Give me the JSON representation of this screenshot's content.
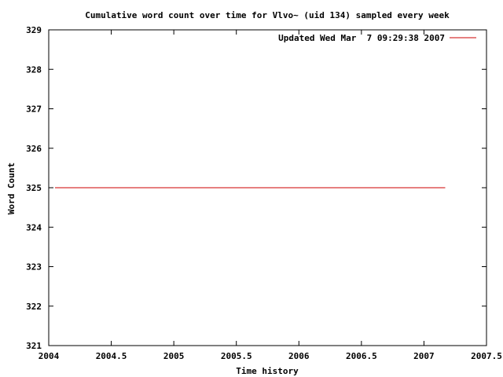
{
  "chart_data": {
    "type": "line",
    "title": "Cumulative word count over time for Vlvo~ (uid 134) sampled every week",
    "xlabel": "Time history",
    "ylabel": "Word Count",
    "xlim": [
      2004,
      2007.5
    ],
    "ylim": [
      321,
      329
    ],
    "xticks": [
      2004,
      2004.5,
      2005,
      2005.5,
      2006,
      2006.5,
      2007,
      2007.5
    ],
    "xtick_labels": [
      "2004",
      "2004.5",
      "2005",
      "2005.5",
      "2006",
      "2006.5",
      "2007",
      "2007.5"
    ],
    "yticks": [
      321,
      322,
      323,
      324,
      325,
      326,
      327,
      328,
      329
    ],
    "ytick_labels": [
      "321",
      "322",
      "323",
      "324",
      "325",
      "326",
      "327",
      "328",
      "329"
    ],
    "grid": false,
    "legend_position": "top-right",
    "series": [
      {
        "name": "Updated Wed Mar  7 09:29:38 2007",
        "color": "#cc0000",
        "x": [
          2004.05,
          2007.17
        ],
        "y": [
          325,
          325
        ]
      }
    ]
  }
}
